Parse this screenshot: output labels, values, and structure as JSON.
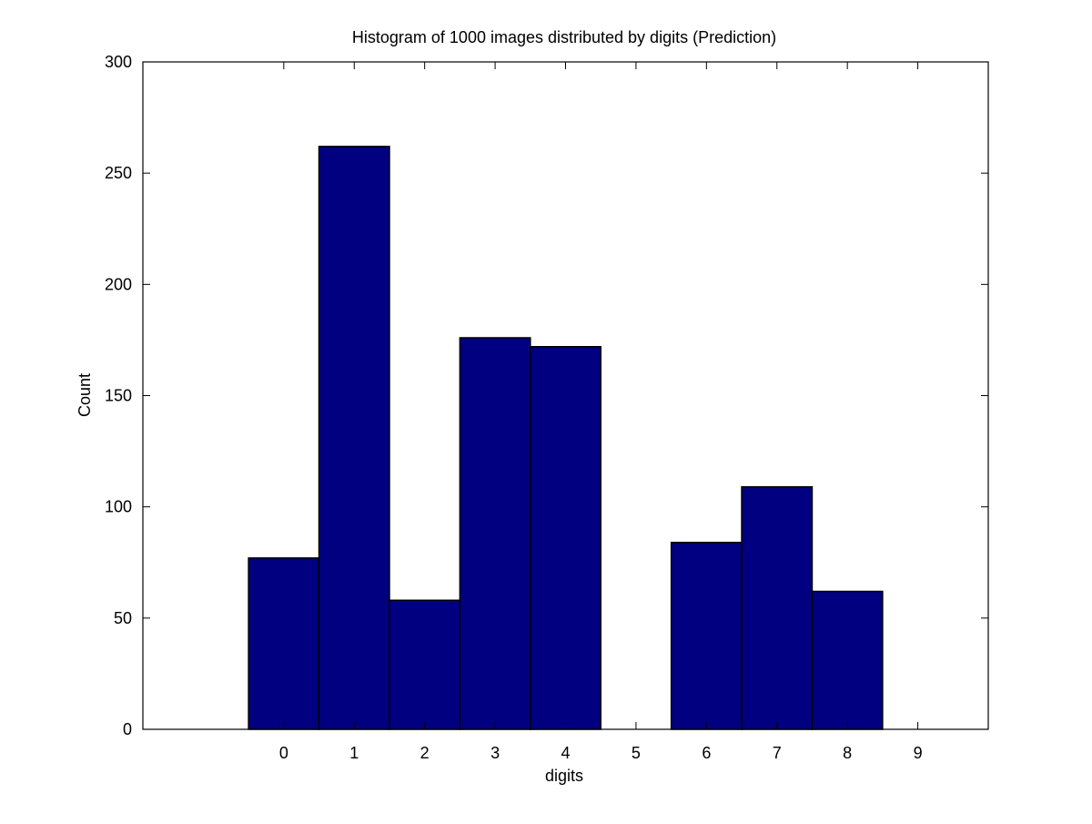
{
  "chart_data": {
    "type": "bar",
    "title": "Histogram of 1000 images distributed by digits (Prediction)",
    "xlabel": "digits",
    "ylabel": "Count",
    "categories": [
      "0",
      "1",
      "2",
      "3",
      "4",
      "5",
      "6",
      "7",
      "8",
      "9"
    ],
    "values": [
      77,
      262,
      58,
      176,
      172,
      0,
      84,
      109,
      62,
      0
    ],
    "xlim": [
      -2,
      10
    ],
    "ylim": [
      0,
      300
    ],
    "yticks": [
      "0",
      "50",
      "100",
      "150",
      "200",
      "250",
      "300"
    ],
    "grid": false,
    "legend": "none",
    "bar_color": "#000080",
    "edge_color": "#000000"
  }
}
